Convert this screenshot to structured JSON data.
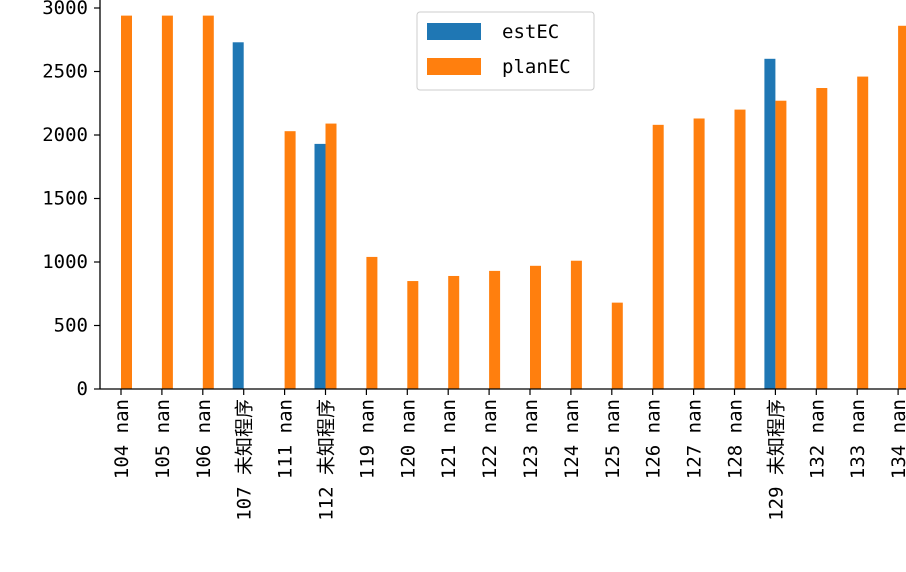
{
  "chart_data": {
    "type": "bar",
    "categories": [
      "104 nan",
      "105 nan",
      "106 nan",
      "107 未知程序",
      "111 nan",
      "112 未知程序",
      "119 nan",
      "120 nan",
      "121 nan",
      "122 nan",
      "123 nan",
      "124 nan",
      "125 nan",
      "126 nan",
      "127 nan",
      "128 nan",
      "129 未知程序",
      "132 nan",
      "133 nan",
      "134 nan"
    ],
    "series": [
      {
        "name": "estEC",
        "color": "#1f77b4",
        "values": [
          null,
          null,
          null,
          2730,
          null,
          1930,
          null,
          null,
          null,
          null,
          null,
          null,
          null,
          null,
          null,
          null,
          2600,
          null,
          null,
          null
        ]
      },
      {
        "name": "planEC",
        "color": "#ff7f0e",
        "values": [
          2940,
          2940,
          2940,
          null,
          2030,
          2090,
          1040,
          850,
          890,
          930,
          970,
          1010,
          680,
          2080,
          2130,
          2200,
          2270,
          2370,
          2460,
          2860
        ]
      }
    ],
    "yticks": [
      "0",
      "500",
      "1000",
      "1500",
      "2000",
      "2500",
      "3000"
    ],
    "ylim": [
      0,
      3000
    ],
    "legend_position": "top-center",
    "grid": false
  }
}
